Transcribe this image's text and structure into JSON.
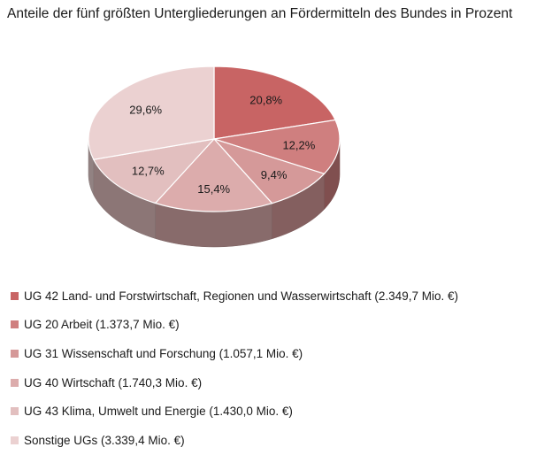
{
  "chart_data": {
    "type": "pie",
    "title": "Anteile der fünf größten Untergliederungen an Fördermitteln des Bundes in Prozent",
    "slices": [
      {
        "label": "UG 42 Land- und Forstwirtschaft, Regionen und Wasserwirtschaft (2.349,7 Mio. €)",
        "value": 20.8,
        "data_label": "20,8%",
        "color": "#c86464"
      },
      {
        "label": "UG 20 Arbeit (1.373,7 Mio. €)",
        "value": 12.2,
        "data_label": "12,2%",
        "color": "#cf7f7f"
      },
      {
        "label": "UG 31 Wissenschaft und Forschung (1.057,1 Mio. €)",
        "value": 9.4,
        "data_label": "9,4%",
        "color": "#d59999"
      },
      {
        "label": "UG 40 Wirtschaft (1.740,3 Mio. €)",
        "value": 15.4,
        "data_label": "15,4%",
        "color": "#dcacac"
      },
      {
        "label": "UG 43 Klima, Umwelt und Energie (1.430,0 Mio. €)",
        "value": 12.7,
        "data_label": "12,7%",
        "color": "#e2bfbf"
      },
      {
        "label": "Sonstige UGs (3.339,4 Mio. €)",
        "value": 29.6,
        "data_label": "29,6%",
        "color": "#ebd1d1"
      }
    ],
    "style": "3d",
    "legend_position": "bottom-left"
  }
}
